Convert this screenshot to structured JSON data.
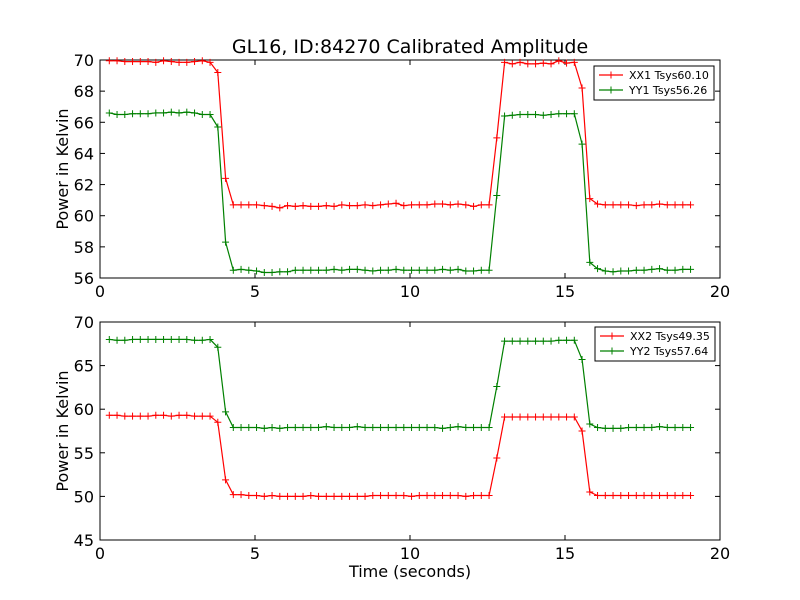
{
  "figure_title": "GL16, ID:84270 Calibrated Amplitude",
  "chart_data": [
    {
      "type": "line",
      "title": "GL16, ID:84270 Calibrated Amplitude",
      "xlabel": "",
      "ylabel": "Power in Kelvin",
      "xlim": [
        0,
        20
      ],
      "ylim": [
        56,
        70
      ],
      "xticks": [
        0,
        5,
        10,
        15,
        20
      ],
      "yticks": [
        56,
        58,
        60,
        62,
        64,
        66,
        68,
        70
      ],
      "grid": false,
      "legend_position": "top-right",
      "x": [
        0.3,
        0.55,
        0.8,
        1.05,
        1.3,
        1.55,
        1.8,
        2.05,
        2.3,
        2.55,
        2.8,
        3.05,
        3.3,
        3.55,
        3.8,
        4.05,
        4.3,
        4.55,
        4.8,
        5.05,
        5.3,
        5.55,
        5.8,
        6.05,
        6.3,
        6.55,
        6.8,
        7.05,
        7.3,
        7.55,
        7.8,
        8.05,
        8.3,
        8.55,
        8.8,
        9.05,
        9.3,
        9.55,
        9.8,
        10.05,
        10.3,
        10.55,
        10.8,
        11.05,
        11.3,
        11.55,
        11.8,
        12.05,
        12.3,
        12.55,
        12.8,
        13.05,
        13.3,
        13.55,
        13.8,
        14.05,
        14.3,
        14.55,
        14.8,
        15.05,
        15.3,
        15.55,
        15.8,
        16.05,
        16.3,
        16.55,
        16.8,
        17.05,
        17.3,
        17.55,
        17.8,
        18.05,
        18.3,
        18.55,
        18.8,
        19.05
      ],
      "series": [
        {
          "name": "XX1 Tsys60.10",
          "color": "#ff0000",
          "values": [
            69.95,
            69.95,
            69.9,
            69.9,
            69.9,
            69.9,
            69.85,
            69.95,
            69.9,
            69.85,
            69.85,
            69.9,
            69.95,
            69.85,
            69.2,
            62.4,
            60.7,
            60.7,
            60.7,
            60.7,
            60.65,
            60.6,
            60.5,
            60.65,
            60.6,
            60.65,
            60.6,
            60.6,
            60.65,
            60.6,
            60.7,
            60.65,
            60.65,
            60.7,
            60.65,
            60.7,
            60.75,
            60.8,
            60.65,
            60.7,
            60.7,
            60.7,
            60.75,
            60.75,
            60.7,
            60.75,
            60.7,
            60.6,
            60.7,
            60.7,
            65.0,
            69.85,
            69.75,
            69.85,
            69.75,
            69.75,
            69.8,
            69.75,
            69.95,
            69.8,
            69.85,
            68.2,
            61.1,
            60.75,
            60.7,
            60.7,
            60.7,
            60.7,
            60.65,
            60.7,
            60.7,
            60.75,
            60.7,
            60.7,
            60.7,
            60.7
          ]
        },
        {
          "name": "YY1 Tsys56.26",
          "color": "#008000",
          "values": [
            66.6,
            66.5,
            66.5,
            66.55,
            66.55,
            66.55,
            66.6,
            66.6,
            66.65,
            66.6,
            66.65,
            66.6,
            66.5,
            66.5,
            65.7,
            58.3,
            56.5,
            56.55,
            56.5,
            56.45,
            56.35,
            56.35,
            56.4,
            56.4,
            56.5,
            56.5,
            56.5,
            56.5,
            56.5,
            56.55,
            56.5,
            56.55,
            56.55,
            56.5,
            56.45,
            56.5,
            56.5,
            56.55,
            56.5,
            56.5,
            56.5,
            56.5,
            56.5,
            56.55,
            56.5,
            56.55,
            56.45,
            56.45,
            56.5,
            56.5,
            61.3,
            66.4,
            66.45,
            66.5,
            66.5,
            66.5,
            66.45,
            66.5,
            66.55,
            66.55,
            66.55,
            64.6,
            57.0,
            56.6,
            56.45,
            56.4,
            56.45,
            56.45,
            56.5,
            56.5,
            56.55,
            56.6,
            56.5,
            56.5,
            56.55,
            56.55
          ]
        }
      ]
    },
    {
      "type": "line",
      "title": "",
      "xlabel": "Time (seconds)",
      "ylabel": "Power in Kelvin",
      "xlim": [
        0,
        20
      ],
      "ylim": [
        45,
        70
      ],
      "xticks": [
        0,
        5,
        10,
        15,
        20
      ],
      "yticks": [
        45,
        50,
        55,
        60,
        65,
        70
      ],
      "grid": false,
      "legend_position": "top-right",
      "x": [
        0.3,
        0.55,
        0.8,
        1.05,
        1.3,
        1.55,
        1.8,
        2.05,
        2.3,
        2.55,
        2.8,
        3.05,
        3.3,
        3.55,
        3.8,
        4.05,
        4.3,
        4.55,
        4.8,
        5.05,
        5.3,
        5.55,
        5.8,
        6.05,
        6.3,
        6.55,
        6.8,
        7.05,
        7.3,
        7.55,
        7.8,
        8.05,
        8.3,
        8.55,
        8.8,
        9.05,
        9.3,
        9.55,
        9.8,
        10.05,
        10.3,
        10.55,
        10.8,
        11.05,
        11.3,
        11.55,
        11.8,
        12.05,
        12.3,
        12.55,
        12.8,
        13.05,
        13.3,
        13.55,
        13.8,
        14.05,
        14.3,
        14.55,
        14.8,
        15.05,
        15.3,
        15.55,
        15.8,
        16.05,
        16.3,
        16.55,
        16.8,
        17.05,
        17.3,
        17.55,
        17.8,
        18.05,
        18.3,
        18.55,
        18.8,
        19.05
      ],
      "series": [
        {
          "name": "XX2 Tsys49.35",
          "color": "#ff0000",
          "values": [
            59.3,
            59.3,
            59.2,
            59.2,
            59.2,
            59.2,
            59.3,
            59.3,
            59.2,
            59.3,
            59.3,
            59.2,
            59.2,
            59.2,
            58.5,
            51.9,
            50.2,
            50.2,
            50.1,
            50.1,
            50.0,
            50.1,
            50.0,
            50.0,
            50.0,
            50.0,
            50.1,
            50.0,
            50.0,
            50.0,
            50.0,
            50.0,
            50.0,
            50.0,
            50.1,
            50.1,
            50.1,
            50.1,
            50.1,
            50.0,
            50.1,
            50.1,
            50.1,
            50.1,
            50.1,
            50.1,
            50.0,
            50.1,
            50.1,
            50.1,
            54.4,
            59.1,
            59.1,
            59.1,
            59.1,
            59.1,
            59.1,
            59.1,
            59.1,
            59.1,
            59.1,
            57.5,
            50.5,
            50.1,
            50.1,
            50.1,
            50.1,
            50.1,
            50.1,
            50.1,
            50.1,
            50.1,
            50.1,
            50.1,
            50.1,
            50.1
          ]
        },
        {
          "name": "YY2 Tsys57.64",
          "color": "#008000",
          "values": [
            68.0,
            67.9,
            67.9,
            68.0,
            68.0,
            68.0,
            68.0,
            68.0,
            68.0,
            68.0,
            68.0,
            67.9,
            67.9,
            68.0,
            67.1,
            59.7,
            57.9,
            57.9,
            57.9,
            57.9,
            57.8,
            57.9,
            57.8,
            57.9,
            57.9,
            57.9,
            57.9,
            57.9,
            58.0,
            57.9,
            57.9,
            57.9,
            58.0,
            57.9,
            57.9,
            57.9,
            57.9,
            57.9,
            57.9,
            57.9,
            57.9,
            57.9,
            57.9,
            57.8,
            57.9,
            58.0,
            57.9,
            57.9,
            57.9,
            57.9,
            62.6,
            67.8,
            67.8,
            67.8,
            67.8,
            67.8,
            67.8,
            67.8,
            67.9,
            67.9,
            67.9,
            65.7,
            58.3,
            57.9,
            57.8,
            57.8,
            57.8,
            57.9,
            57.9,
            57.9,
            57.9,
            58.0,
            57.9,
            57.9,
            57.9,
            57.9
          ]
        }
      ]
    }
  ]
}
